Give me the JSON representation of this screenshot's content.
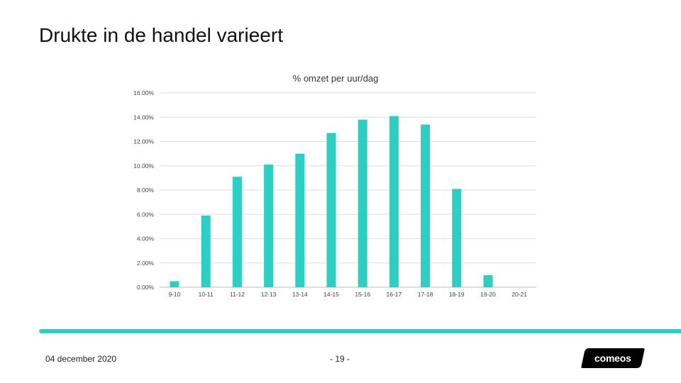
{
  "slide": {
    "title": "Drukte in de handel varieert",
    "footer_date": "04 december 2020",
    "page_number": "- 19 -",
    "logo_text": "comeos"
  },
  "chart_data": {
    "type": "bar",
    "title": "% omzet per uur/dag",
    "xlabel": "",
    "ylabel": "",
    "categories": [
      "9-10",
      "10-11",
      "11-12",
      "12-13",
      "13-14",
      "14-15",
      "15-16",
      "16-17",
      "17-18",
      "18-19",
      "19-20",
      "20-21"
    ],
    "values": [
      0.5,
      5.9,
      9.1,
      10.1,
      11.0,
      12.7,
      13.8,
      14.1,
      13.4,
      8.1,
      1.0,
      0.0
    ],
    "ylim": [
      0,
      16
    ],
    "yticks": [
      "0.00%",
      "2.00%",
      "4.00%",
      "6.00%",
      "8.00%",
      "10.00%",
      "12.00%",
      "14.00%",
      "16.00%"
    ],
    "grid": true,
    "legend": "none",
    "bar_color": "#2bd0c4"
  }
}
